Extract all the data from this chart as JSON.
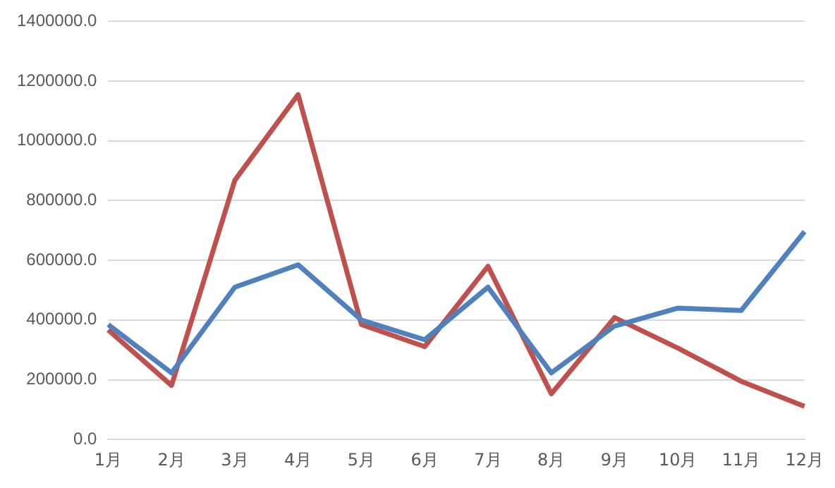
{
  "chart_data": {
    "type": "line",
    "categories": [
      "1月",
      "2月",
      "3月",
      "4月",
      "5月",
      "6月",
      "7月",
      "8月",
      "9月",
      "10月",
      "11月",
      "12月"
    ],
    "series": [
      {
        "color": "#4f81bd",
        "values": [
          385000,
          223000,
          510000,
          585000,
          400000,
          334000,
          510000,
          223000,
          380000,
          440000,
          432000,
          696000
        ]
      },
      {
        "color": "#c0504d",
        "values": [
          367000,
          181000,
          868000,
          1155000,
          385000,
          311000,
          580000,
          153000,
          408000,
          306000,
          195000,
          111000
        ]
      }
    ],
    "ylim": [
      0,
      1400000
    ],
    "yticks": [
      {
        "value": 0,
        "label": "0.0"
      },
      {
        "value": 200000,
        "label": "200000.0"
      },
      {
        "value": 400000,
        "label": "400000.0"
      },
      {
        "value": 600000,
        "label": "600000.0"
      },
      {
        "value": 800000,
        "label": "800000.0"
      },
      {
        "value": 1000000,
        "label": "1000000.0"
      },
      {
        "value": 1200000,
        "label": "1200000.0"
      },
      {
        "value": 1400000,
        "label": "1400000.0"
      }
    ],
    "grid": "y",
    "legend": false,
    "marker": "none",
    "line_style": "solid"
  }
}
